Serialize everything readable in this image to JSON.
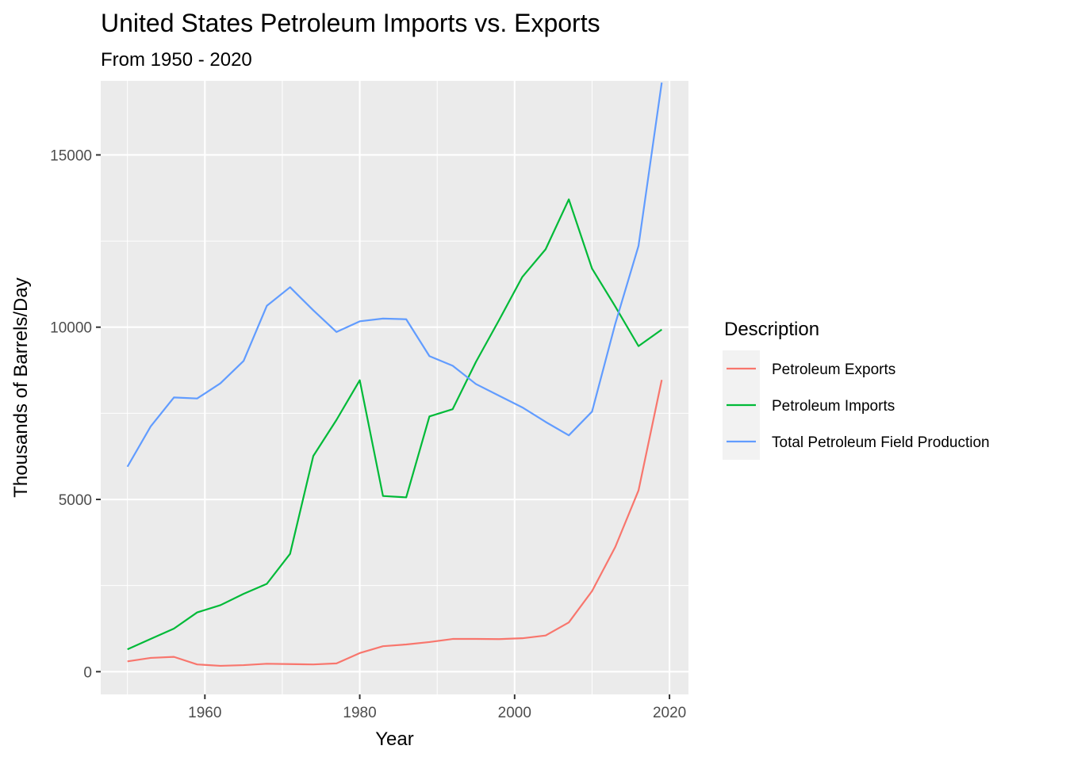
{
  "chart_data": {
    "type": "line",
    "title": "United States Petroleum Imports vs. Exports",
    "subtitle": "From 1950 - 2020",
    "xlabel": "Year",
    "ylabel": "Thousands of Barrels/Day",
    "xlim": [
      1946.55,
      2022.45
    ],
    "ylim": [
      -660,
      17150
    ],
    "x_ticks": [
      1960,
      1980,
      2000,
      2020
    ],
    "y_ticks": [
      0,
      5000,
      10000,
      15000
    ],
    "grid": true,
    "legend": {
      "title": "Description",
      "position": "right"
    },
    "x": [
      1950,
      1953,
      1956,
      1959,
      1962,
      1965,
      1968,
      1971,
      1974,
      1977,
      1980,
      1983,
      1986,
      1989,
      1992,
      1995,
      1998,
      2001,
      2004,
      2007,
      2010,
      2013,
      2016,
      2019
    ],
    "series": [
      {
        "name": "Petroleum Exports",
        "color": "#F8766D",
        "values": [
          300,
          400,
          430,
          210,
          170,
          190,
          230,
          220,
          210,
          240,
          540,
          740,
          790,
          860,
          950,
          950,
          945,
          970,
          1050,
          1430,
          2340,
          3620,
          5260,
          8470
        ]
      },
      {
        "name": "Petroleum Imports",
        "color": "#00BA38",
        "values": [
          650,
          950,
          1250,
          1720,
          1930,
          2260,
          2550,
          3420,
          6260,
          7310,
          8460,
          5100,
          5060,
          7410,
          7620,
          8990,
          10210,
          11460,
          12260,
          13710,
          11700,
          10600,
          9450,
          9930
        ]
      },
      {
        "name": "Total Petroleum Field Production",
        "color": "#619CFF",
        "values": [
          5950,
          7120,
          7960,
          7930,
          8370,
          9020,
          10620,
          11160,
          10490,
          9860,
          10170,
          10250,
          10230,
          9160,
          8880,
          8350,
          8010,
          7670,
          7250,
          6860,
          7550,
          10100,
          12360,
          17100
        ]
      }
    ]
  }
}
